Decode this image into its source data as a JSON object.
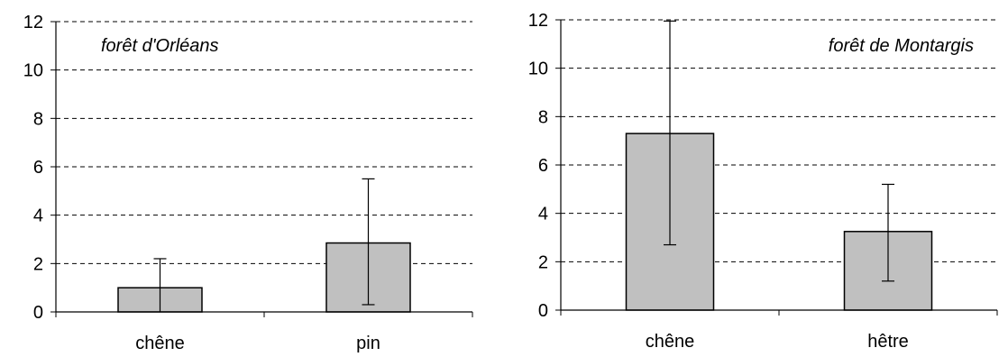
{
  "colors": {
    "bar_fill": "#c0c0c0",
    "bar_stroke": "#000000",
    "grid": "#000000",
    "axis": "#000000"
  },
  "chart_data": [
    {
      "type": "bar",
      "annotation": "forêt d'Orléans",
      "categories": [
        "chêne",
        "pin"
      ],
      "values": [
        1.0,
        2.85
      ],
      "error_bars": [
        [
          0.0,
          2.2
        ],
        [
          0.3,
          5.5
        ]
      ],
      "ylim": [
        0,
        12
      ],
      "yticks": [
        "0",
        "2",
        "4",
        "6",
        "8",
        "10",
        "12"
      ],
      "grid": "dashed horizontal"
    },
    {
      "type": "bar",
      "annotation": "forêt de Montargis",
      "categories": [
        "chêne",
        "hêtre"
      ],
      "values": [
        7.3,
        3.25
      ],
      "error_bars": [
        [
          2.7,
          11.95
        ],
        [
          1.2,
          5.2
        ]
      ],
      "ylim": [
        0,
        12
      ],
      "yticks": [
        "0",
        "2",
        "4",
        "6",
        "8",
        "10",
        "12"
      ],
      "grid": "dashed horizontal"
    }
  ]
}
